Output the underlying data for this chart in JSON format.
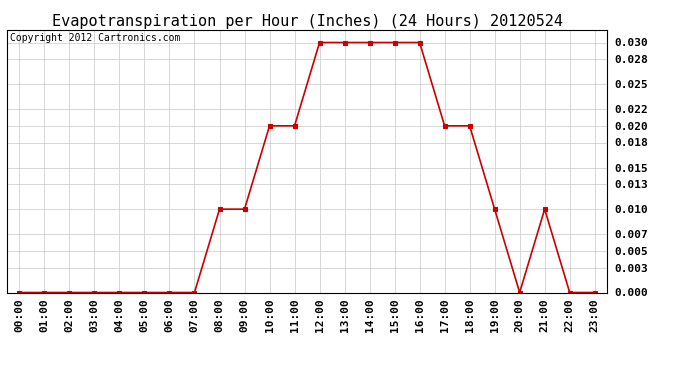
{
  "title": "Evapotranspiration per Hour (Inches) (24 Hours) 20120524",
  "copyright": "Copyright 2012 Cartronics.com",
  "hours": [
    0,
    1,
    2,
    3,
    4,
    5,
    6,
    7,
    8,
    9,
    10,
    11,
    12,
    13,
    14,
    15,
    16,
    17,
    18,
    19,
    20,
    21,
    22,
    23
  ],
  "values": [
    0.0,
    0.0,
    0.0,
    0.0,
    0.0,
    0.0,
    0.0,
    0.0,
    0.01,
    0.01,
    0.02,
    0.02,
    0.03,
    0.03,
    0.03,
    0.03,
    0.03,
    0.02,
    0.02,
    0.01,
    0.0,
    0.01,
    0.0,
    0.0
  ],
  "x_labels": [
    "00:00",
    "01:00",
    "02:00",
    "03:00",
    "04:00",
    "05:00",
    "06:00",
    "07:00",
    "08:00",
    "09:00",
    "10:00",
    "11:00",
    "12:00",
    "13:00",
    "14:00",
    "15:00",
    "16:00",
    "17:00",
    "18:00",
    "19:00",
    "20:00",
    "21:00",
    "22:00",
    "23:00"
  ],
  "y_ticks": [
    0.0,
    0.003,
    0.005,
    0.007,
    0.01,
    0.013,
    0.015,
    0.018,
    0.02,
    0.022,
    0.025,
    0.028,
    0.03
  ],
  "line_color": "#cc0000",
  "marker_color": "#cc0000",
  "grid_color": "#c8c8c8",
  "bg_color": "#ffffff",
  "plot_bg_color": "#ffffff",
  "title_fontsize": 11,
  "copyright_fontsize": 7,
  "tick_fontsize": 8,
  "ylim": [
    0,
    0.0315
  ]
}
